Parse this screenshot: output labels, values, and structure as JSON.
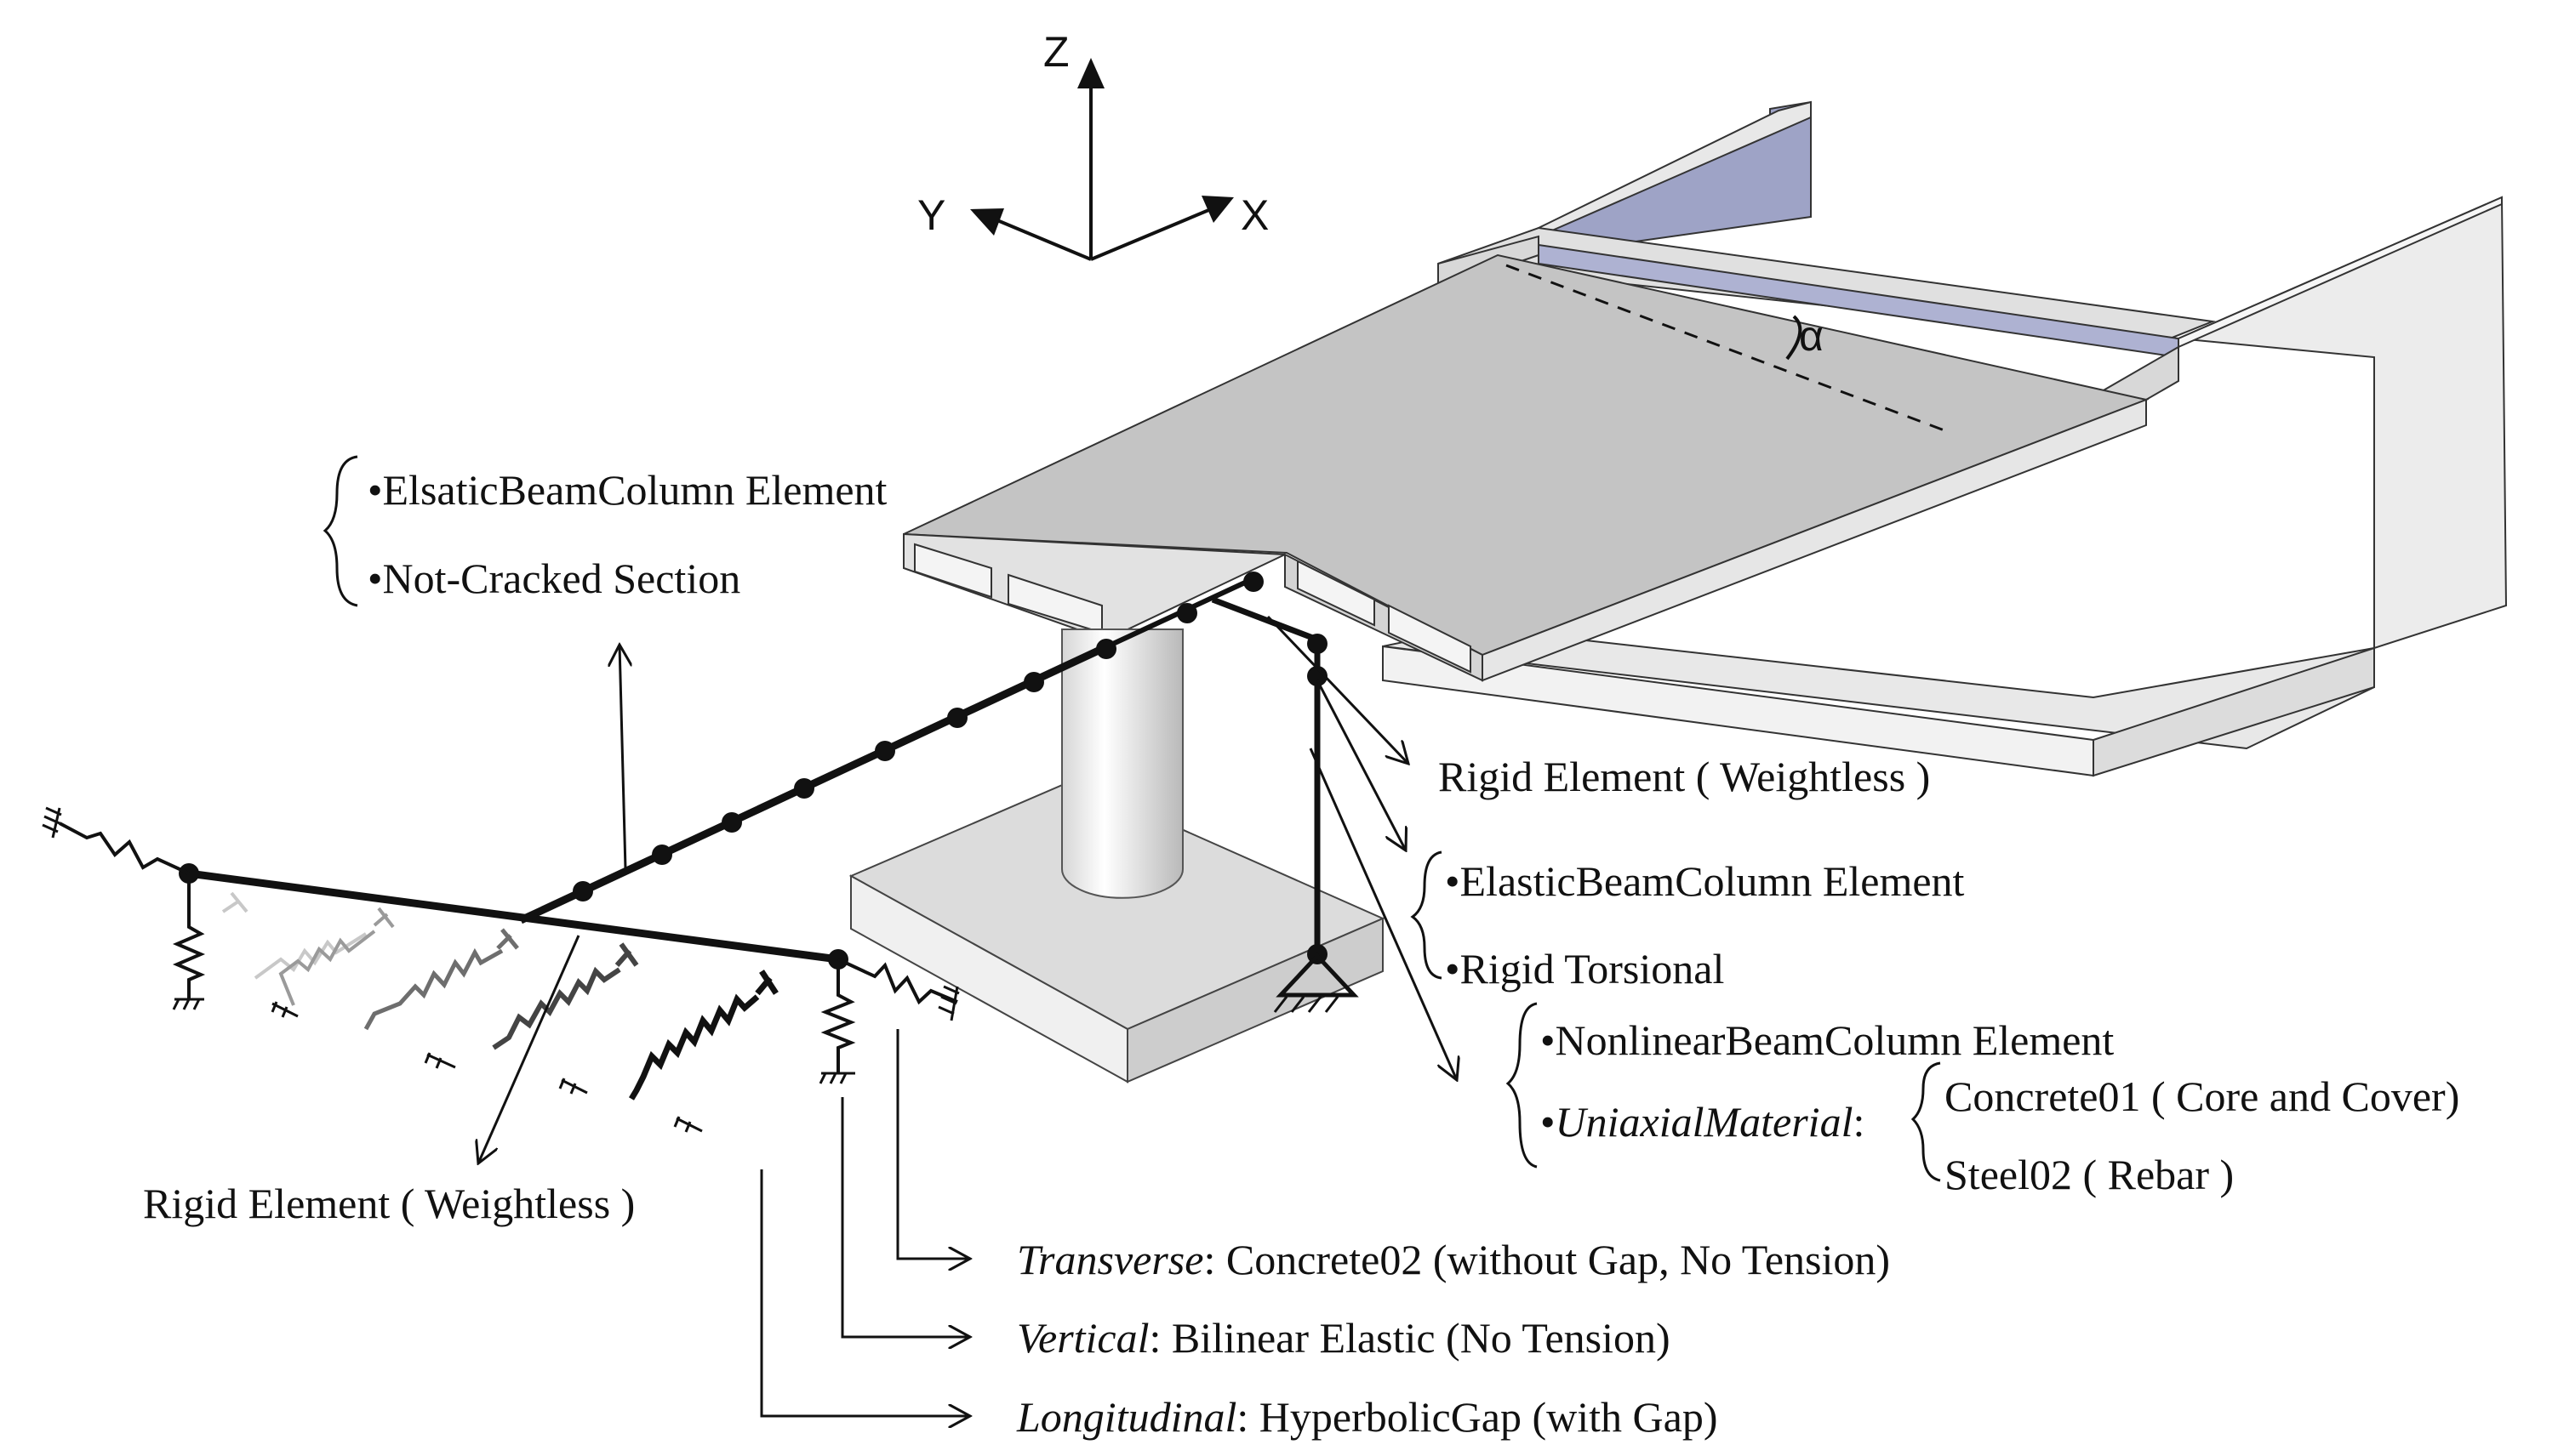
{
  "axes": {
    "z": "Z",
    "y": "Y",
    "x": "X"
  },
  "angle_symbol": "α",
  "labels": {
    "deck_element": "•ElsaticBeamColumn Element",
    "deck_section": "•Not-Cracked Section",
    "rigid_right": "Rigid Element ( Weightless )",
    "cap_element": "•ElasticBeamColumn Element",
    "cap_torsion": "•Rigid Torsional",
    "column_element": "•NonlinearBeamColumn Element",
    "uniaxial_prefix": "•",
    "uniaxial_italic": "UniaxialMaterial",
    "uniaxial_colon": ":",
    "concrete": "Concrete01 ( Core and Cover)",
    "steel": "Steel02 ( Rebar )",
    "rigid_left": "Rigid Element ( Weightless )",
    "transverse_italic": "Transverse",
    "transverse_rest": ": Concrete02 (without Gap, No Tension)",
    "vertical_italic": "Vertical",
    "vertical_rest": ": Bilinear Elastic (No Tension)",
    "longitudinal_italic": "Longitudinal",
    "longitudinal_rest": ": HyperbolicGap (with Gap)"
  },
  "colors": {
    "deck_top": "#c4c4c4",
    "abutment": "#e8e8e8",
    "backwall_blue": "#9ea3c6",
    "ink": "#111111"
  }
}
